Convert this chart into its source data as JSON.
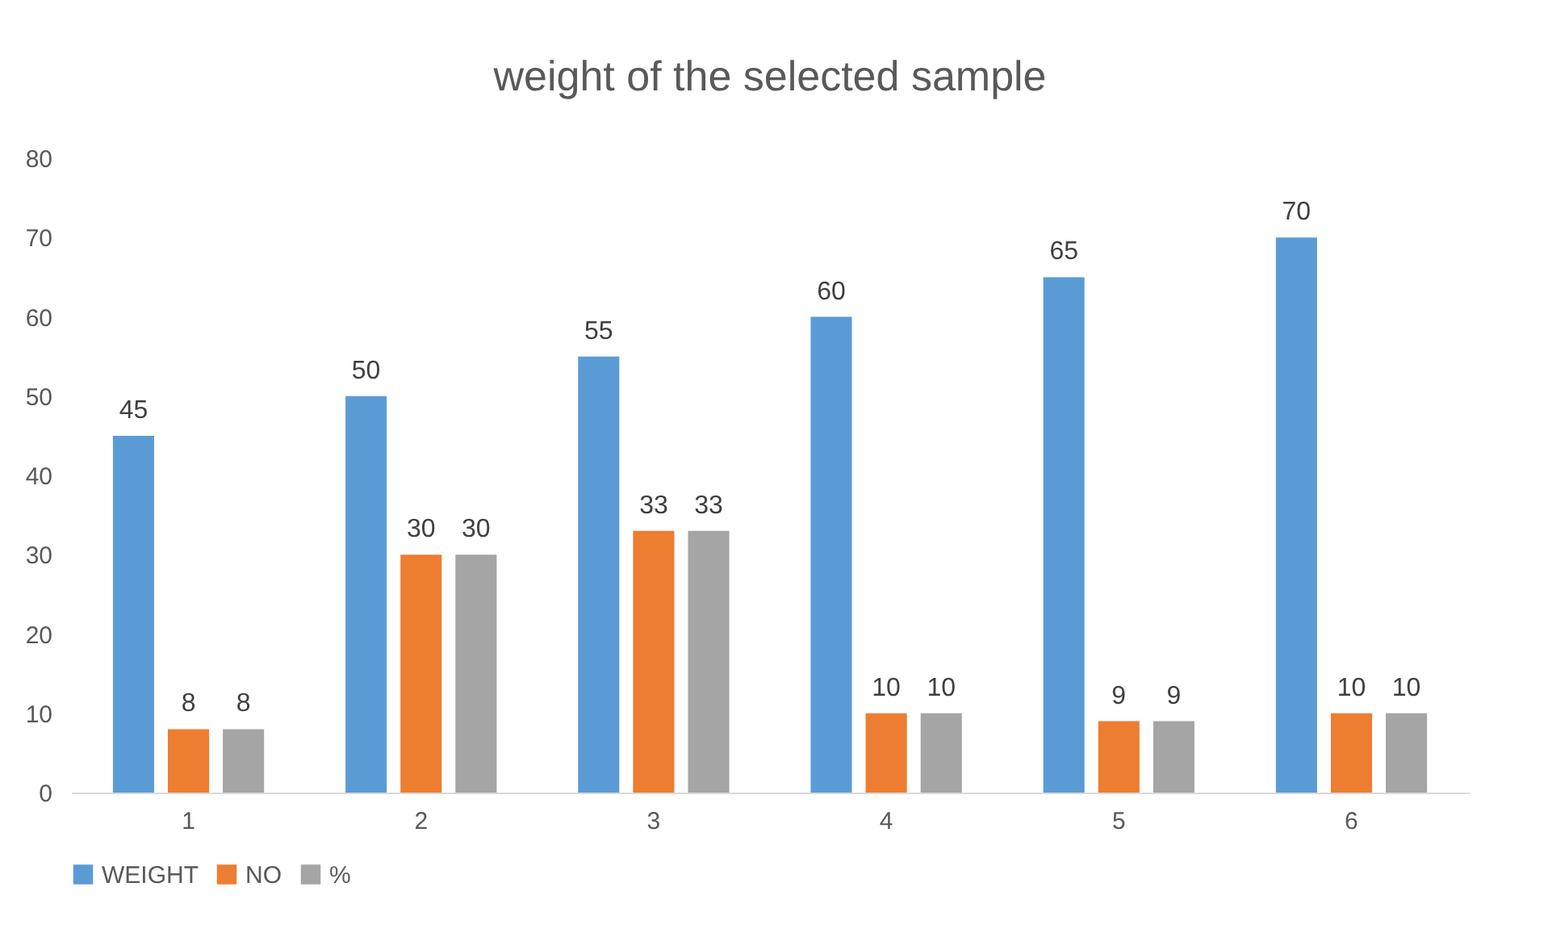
{
  "chart_data": {
    "type": "bar",
    "title": "weight of the selected sample",
    "categories": [
      "1",
      "2",
      "3",
      "4",
      "5",
      "6"
    ],
    "series": [
      {
        "name": "WEIGHT",
        "color": "#5b9bd5",
        "values": [
          45,
          50,
          55,
          60,
          65,
          70
        ]
      },
      {
        "name": "NO",
        "color": "#ed7d31",
        "values": [
          8,
          30,
          33,
          10,
          9,
          10
        ]
      },
      {
        "name": "%",
        "color": "#a5a5a5",
        "values": [
          8,
          30,
          33,
          10,
          9,
          10
        ]
      }
    ],
    "ylim": [
      0,
      80
    ],
    "yticks": [
      0,
      10,
      20,
      30,
      40,
      50,
      60,
      70,
      80
    ],
    "grid": false,
    "legend": "bottom",
    "data_labels": true
  }
}
